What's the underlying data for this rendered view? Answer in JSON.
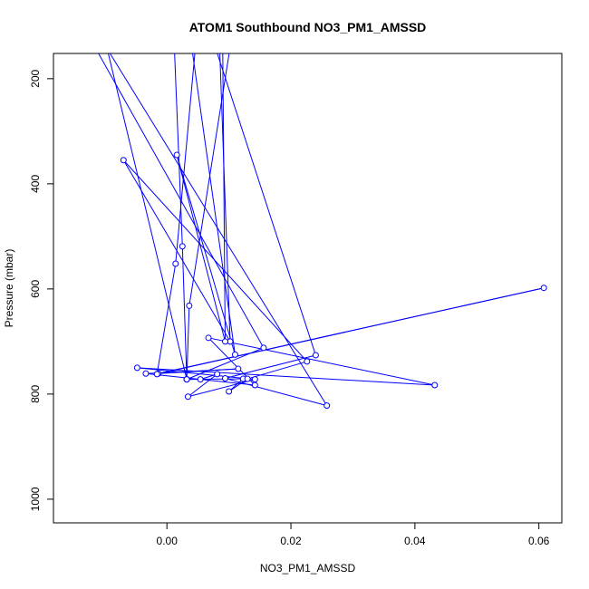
{
  "chart_data": {
    "type": "line",
    "title": "ATOM1 Southbound NO3_PM1_AMSSD",
    "xlabel": "NO3_PM1_AMSSD",
    "ylabel": "Pressure (mbar)",
    "xlim": [
      -0.0183,
      0.0637
    ],
    "ylim": [
      1045,
      152
    ],
    "y_reversed": true,
    "x_ticks": [
      {
        "value": 0.0,
        "label": "0.00"
      },
      {
        "value": 0.02,
        "label": "0.02"
      },
      {
        "value": 0.04,
        "label": "0.04"
      },
      {
        "value": 0.06,
        "label": "0.06"
      }
    ],
    "y_ticks": [
      {
        "value": 200,
        "label": "200"
      },
      {
        "value": 400,
        "label": "400"
      },
      {
        "value": 600,
        "label": "600"
      },
      {
        "value": 800,
        "label": "800"
      },
      {
        "value": 1000,
        "label": "1000"
      }
    ],
    "grid": false,
    "legend": "none",
    "colors": {
      "series": "#0000ff",
      "axes": "#000000",
      "background": "#ffffff"
    },
    "series": [
      {
        "marker": "open-circle",
        "points": [
          {
            "x": -0.0097,
            "y": 140,
            "marker": false
          },
          {
            "x": 0.0032,
            "y": 772
          },
          {
            "x": 0.0054,
            "y": 772
          },
          {
            "x": 0.0081,
            "y": 762
          },
          {
            "x": 0.0034,
            "y": 805
          },
          {
            "x": 0.0142,
            "y": 772
          },
          {
            "x": -0.0048,
            "y": 750
          },
          {
            "x": 0.0432,
            "y": 783
          },
          {
            "x": 0.0067,
            "y": 693
          },
          {
            "x": 0.0142,
            "y": 783
          },
          {
            "x": -0.0034,
            "y": 761
          },
          {
            "x": 0.0115,
            "y": 752
          },
          {
            "x": -0.0014,
            "y": 761
          },
          {
            "x": 0.0608,
            "y": 598
          },
          {
            "x": -0.0016,
            "y": 762
          },
          {
            "x": 0.0014,
            "y": 552
          },
          {
            "x": 0.0046,
            "y": 140,
            "marker": false
          },
          {
            "x": 0.0012,
            "y": 140,
            "marker": false
          },
          {
            "x": 0.0025,
            "y": 519
          },
          {
            "x": 0.0032,
            "y": 772
          },
          {
            "x": 0.0123,
            "y": 771
          },
          {
            "x": 0.01,
            "y": 795
          },
          {
            "x": 0.013,
            "y": 771
          },
          {
            "x": 0.0226,
            "y": 738
          },
          {
            "x": -0.007,
            "y": 355
          },
          {
            "x": 0.0102,
            "y": 700
          },
          {
            "x": 0.0085,
            "y": 140,
            "marker": false
          },
          {
            "x": 0.009,
            "y": 140,
            "marker": false
          },
          {
            "x": 0.0094,
            "y": 700
          },
          {
            "x": 0.0016,
            "y": 345
          },
          {
            "x": 0.011,
            "y": 725
          },
          {
            "x": 0.004,
            "y": 140,
            "marker": false
          },
          {
            "x": 0.0056,
            "y": 140,
            "marker": false
          },
          {
            "x": 0.0102,
            "y": 140,
            "marker": false
          },
          {
            "x": 0.0036,
            "y": 632
          },
          {
            "x": 0.0032,
            "y": 772
          },
          {
            "x": 0.0156,
            "y": 712
          },
          {
            "x": -0.0116,
            "y": 140,
            "marker": false
          },
          {
            "x": 0.0016,
            "y": 140,
            "marker": false
          },
          {
            "x": 0.0078,
            "y": 140,
            "marker": false
          },
          {
            "x": 0.024,
            "y": 726
          },
          {
            "x": 0.0094,
            "y": 770
          },
          {
            "x": 0.0258,
            "y": 822
          },
          {
            "x": -0.0098,
            "y": 140,
            "marker": false
          }
        ]
      }
    ]
  }
}
